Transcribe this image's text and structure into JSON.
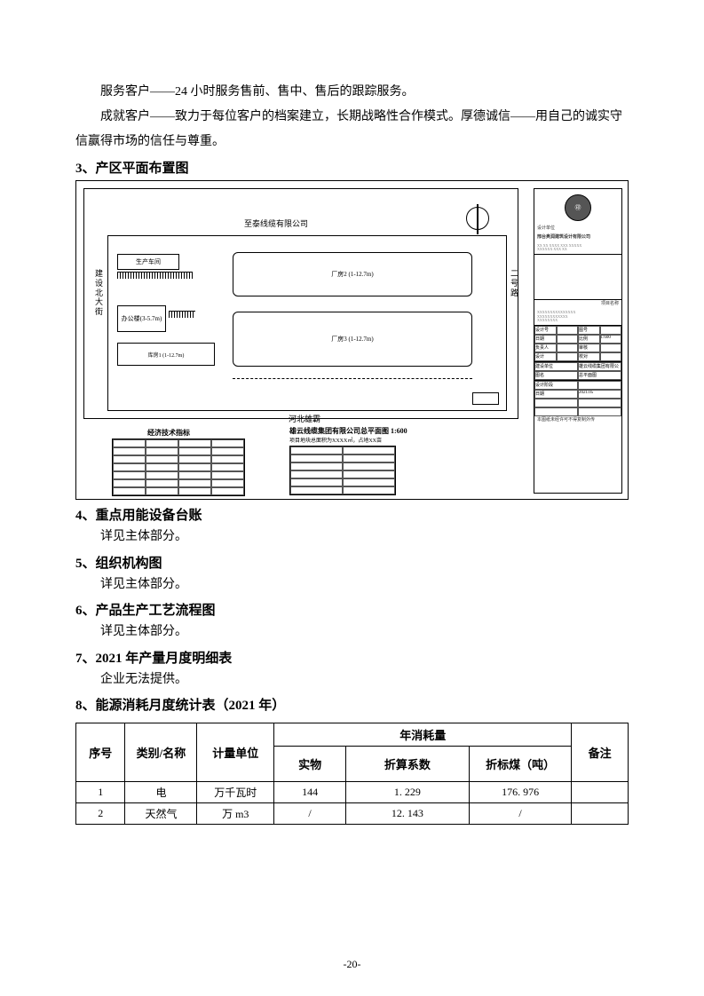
{
  "para1": "服务客户——24 小时服务售前、售中、售后的跟踪服务。",
  "para2": "成就客户——致力于每位客户的档案建立，长期战略性合作模式。厚德诚信——用自己的诚实守信赢得市场的信任与尊重。",
  "sec3": {
    "heading": "3、产区平面布置图"
  },
  "floorplan": {
    "top_company": "至泰线缆有限公司",
    "left_road": "建设北大街",
    "right_road": "二号路",
    "bottom_road": "河北雄霸",
    "tech_title": "经济技术指标",
    "plan_title": "雄云线缆集团有限公司总平面图  1:600",
    "plan_sub": "项目地块总面积为XXXX㎡，占地XX亩",
    "block_a": "生产车间",
    "block_b": "办公楼(3-5.7m)",
    "block_c": "厂房2 (1-12.7m)",
    "block_d": "厂房3 (1-12.7m)",
    "block_e": "库房1 (1-12.7m)",
    "title_block": {
      "firm1": "设计单位",
      "firm2": "邢台奥润建筑设计有限公司",
      "section_a": "项目名称",
      "rows": [
        [
          "设计号",
          "",
          "图号",
          ""
        ],
        [
          "日期",
          "",
          "比例",
          "1:600"
        ],
        [
          "负责人",
          "",
          "审核",
          ""
        ],
        [
          "设计",
          "",
          "校对",
          ""
        ]
      ],
      "proj": "建设单位",
      "proj2": "雄云线缆集团有限公司",
      "drawing": "图名",
      "drawing2": "总平面图",
      "stage": "设计阶段",
      "date": "2021.05"
    }
  },
  "sec4": {
    "heading": "4、重点用能设备台账",
    "detail": "详见主体部分。"
  },
  "sec5": {
    "heading": "5、组织机构图",
    "detail": "详见主体部分。"
  },
  "sec6": {
    "heading": "6、产品生产工艺流程图",
    "detail": "详见主体部分。"
  },
  "sec7": {
    "heading": "7、2021 年产量月度明细表",
    "detail": "企业无法提供。"
  },
  "sec8": {
    "heading": "8、能源消耗月度统计表（2021 年）"
  },
  "energy_table": {
    "head": {
      "seq": "序号",
      "cat": "类别/名称",
      "unit": "计量单位",
      "annual": "年消耗量",
      "actual": "实物",
      "coef": "折算系数",
      "coal": "折标煤（吨）",
      "note": "备注"
    },
    "rows": [
      {
        "seq": "1",
        "cat": "电",
        "unit": "万千瓦时",
        "actual": "144",
        "coef": "1. 229",
        "coal": "176. 976",
        "note": ""
      },
      {
        "seq": "2",
        "cat": "天然气",
        "unit": "万 m3",
        "actual": "/",
        "coef": "12. 143",
        "coal": "/",
        "note": ""
      }
    ]
  },
  "page_number": "-20-"
}
